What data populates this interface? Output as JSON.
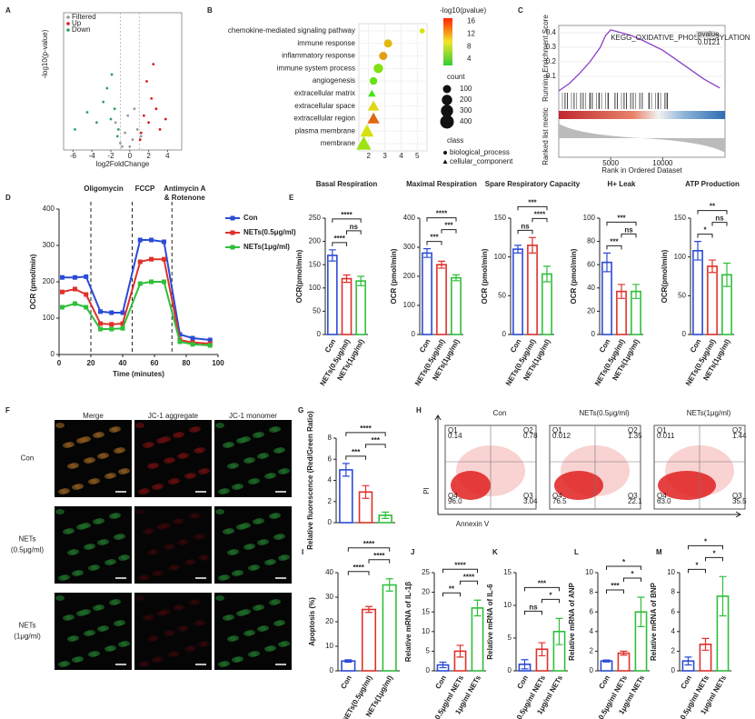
{
  "chart_data": [
    {
      "type": "volcano",
      "panel": "A",
      "xlabel": "log2FoldChange",
      "ylabel": "-log10(p-value)",
      "xlim": [
        -7,
        5.5
      ],
      "xticks": [
        -6,
        -4,
        -2,
        0,
        2,
        4
      ],
      "ylim": [
        0,
        40
      ],
      "series": [
        {
          "name": "Filtered",
          "color": "#999999",
          "x": [
            -1,
            -0.5,
            0.3,
            0.8,
            -1.5,
            1.2,
            0,
            -0.2,
            0.5,
            -0.8
          ],
          "values": [
            2,
            5,
            3,
            6,
            8,
            4,
            1,
            10,
            12,
            1
          ]
        },
        {
          "name": "Up",
          "color": "#d7191c",
          "x": [
            1.2,
            1.5,
            2,
            2.3,
            1.8,
            2.8,
            3.2,
            1.1,
            2.5,
            3.8
          ],
          "values": [
            5,
            10,
            8,
            15,
            20,
            12,
            6,
            3,
            25,
            9
          ]
        },
        {
          "name": "Down",
          "color": "#2ca25f",
          "x": [
            -1.2,
            -1.6,
            -2,
            -2.4,
            -1.9,
            -2.8,
            -3.5,
            -1.3,
            -4.5,
            -5.8
          ],
          "values": [
            6,
            12,
            9,
            18,
            22,
            14,
            8,
            4,
            11,
            6
          ]
        }
      ]
    },
    {
      "type": "dot",
      "panel": "B",
      "categories": [
        "chemokine-mediated signaling pathway",
        "immune response",
        "inflammatory response",
        "immune system process",
        "angiogenesis",
        "extracellular matrix",
        "extracellular space",
        "extracellular region",
        "plasma membrane",
        "membrane"
      ],
      "values": [
        5.3,
        3.2,
        2.9,
        2.6,
        2.3,
        2.2,
        2.3,
        2.3,
        1.9,
        1.7
      ],
      "counts": [
        20,
        100,
        100,
        150,
        80,
        80,
        250,
        300,
        400,
        500
      ],
      "pvalue": [
        9,
        11,
        12,
        6,
        5,
        4,
        10,
        14,
        9,
        7
      ],
      "classes": [
        "biological_process",
        "biological_process",
        "biological_process",
        "biological_process",
        "biological_process",
        "cellular_component",
        "cellular_component",
        "cellular_component",
        "cellular_component",
        "cellular_component"
      ],
      "xlim": [
        1.4,
        5.6
      ],
      "xticks": [
        2,
        3,
        4,
        5
      ],
      "color_title": "-log10(pvalue)",
      "clim": [
        2,
        17
      ],
      "cticks": [
        4,
        8,
        12,
        16
      ],
      "size_title": "count",
      "size_ticks": [
        100,
        200,
        300,
        400
      ],
      "class_title": "class",
      "class_names": [
        "biological_process",
        "cellular_component"
      ]
    },
    {
      "type": "gsea",
      "panel": "C",
      "ylabel": "Running Enrichment Score",
      "xlabel": "Rank in Ordered Dataset",
      "y2label": "Ranked list metric",
      "annotation": "KEGG_OXIDATIVE_PHOSPHORYLATION",
      "pvalue_label": "pvalue",
      "pvalue": "0.0121",
      "xlim": [
        0,
        16000
      ],
      "xticks": [
        5000,
        10000
      ],
      "ylim": [
        0,
        0.45
      ],
      "yticks": [
        0.1,
        0.2,
        0.3,
        0.4
      ],
      "x": [
        0,
        1000,
        2000,
        3000,
        4000,
        4500,
        5000,
        6000,
        7000,
        8000,
        10000,
        12000,
        14000,
        15500
      ],
      "values": [
        0,
        0.05,
        0.12,
        0.2,
        0.3,
        0.38,
        0.42,
        0.4,
        0.38,
        0.35,
        0.28,
        0.18,
        0.08,
        0.02
      ],
      "color": "#8a3fc7"
    },
    {
      "type": "line",
      "panel": "D",
      "xlabel": "Time (minutes)",
      "ylabel": "OCR (pmol/min)",
      "xlim": [
        0,
        100
      ],
      "xticks": [
        0,
        20,
        40,
        60,
        80,
        100
      ],
      "ylim": [
        0,
        400
      ],
      "yticks": [
        0,
        100,
        200,
        300,
        400
      ],
      "injections": [
        {
          "x": 20,
          "label": [
            "Oligomycin"
          ]
        },
        {
          "x": 46,
          "label": [
            "FCCP"
          ]
        },
        {
          "x": 71,
          "label": [
            "Antimycin A",
            "& Rotenone"
          ]
        }
      ],
      "x": [
        2,
        10,
        17,
        26,
        33,
        40,
        51,
        58,
        66,
        76,
        84,
        95
      ],
      "series": [
        {
          "name": "Con",
          "color": "#2b4bd6",
          "values": [
            212,
            212,
            214,
            118,
            115,
            115,
            315,
            315,
            310,
            55,
            45,
            40
          ]
        },
        {
          "name": "NETs(0.5μg/ml)",
          "color": "#e0302a",
          "values": [
            172,
            180,
            165,
            85,
            83,
            85,
            255,
            262,
            262,
            40,
            33,
            30
          ]
        },
        {
          "name": "NETs(1μg/ml)",
          "color": "#2fbf3a",
          "values": [
            130,
            140,
            130,
            70,
            70,
            72,
            195,
            200,
            200,
            35,
            28,
            25
          ]
        }
      ]
    },
    {
      "type": "bar",
      "panel": "E",
      "title": "Basal Respiration",
      "ylabel": "OCR(pmol/min)",
      "categories": [
        "Con",
        "NETs(0.5μg/ml)",
        "NETs(1μg/ml)"
      ],
      "values": [
        170,
        120,
        115
      ],
      "errors": [
        12,
        8,
        10
      ],
      "colors": [
        "#2b4bd6",
        "#e0302a",
        "#2fbf3a"
      ],
      "ylim": [
        0,
        250
      ],
      "yticks": [
        0,
        50,
        100,
        150,
        200,
        250
      ],
      "comparisons": [
        {
          "pair": [
            0,
            1
          ],
          "label": "****"
        },
        {
          "pair": [
            1,
            2
          ],
          "label": "ns"
        },
        {
          "pair": [
            0,
            2
          ],
          "label": "****"
        }
      ]
    },
    {
      "type": "bar",
      "title": "Maximal Respiration",
      "ylabel": "OCR (pmol/min)",
      "categories": [
        "Con",
        "NETs(0.5μg/ml)",
        "NETs(1μg/ml)"
      ],
      "values": [
        280,
        240,
        195
      ],
      "errors": [
        15,
        12,
        10
      ],
      "colors": [
        "#2b4bd6",
        "#e0302a",
        "#2fbf3a"
      ],
      "ylim": [
        0,
        400
      ],
      "yticks": [
        0,
        100,
        200,
        300,
        400
      ],
      "comparisons": [
        {
          "pair": [
            0,
            1
          ],
          "label": "***"
        },
        {
          "pair": [
            1,
            2
          ],
          "label": "***"
        },
        {
          "pair": [
            0,
            2
          ],
          "label": "****"
        }
      ]
    },
    {
      "type": "bar",
      "title": "Spare Respiratory Capacity",
      "ylabel": "OCR (pmol/min)",
      "categories": [
        "Con",
        "NETs(0.5μg/ml)",
        "NETs(1μg/ml)"
      ],
      "values": [
        110,
        115,
        78
      ],
      "errors": [
        5,
        10,
        10
      ],
      "colors": [
        "#2b4bd6",
        "#e0302a",
        "#2fbf3a"
      ],
      "ylim": [
        0,
        150
      ],
      "yticks": [
        0,
        50,
        100,
        150
      ],
      "comparisons": [
        {
          "pair": [
            0,
            1
          ],
          "label": "ns"
        },
        {
          "pair": [
            1,
            2
          ],
          "label": "****"
        },
        {
          "pair": [
            0,
            2
          ],
          "label": "***"
        }
      ]
    },
    {
      "type": "bar",
      "title": "H+ Leak",
      "ylabel": "OCR (pmol/min)",
      "categories": [
        "Con",
        "NETs(0.5μg/ml)",
        "NETs(1μg/ml)"
      ],
      "values": [
        62,
        37,
        37
      ],
      "errors": [
        8,
        6,
        6
      ],
      "colors": [
        "#2b4bd6",
        "#e0302a",
        "#2fbf3a"
      ],
      "ylim": [
        0,
        100
      ],
      "yticks": [
        0,
        20,
        40,
        60,
        80,
        100
      ],
      "comparisons": [
        {
          "pair": [
            0,
            1
          ],
          "label": "***"
        },
        {
          "pair": [
            1,
            2
          ],
          "label": "ns"
        },
        {
          "pair": [
            0,
            2
          ],
          "label": "***"
        }
      ]
    },
    {
      "type": "bar",
      "title": "ATP Production",
      "ylabel": "OCR(pmol/min)",
      "categories": [
        "Con",
        "NETs(0.5μg/ml)",
        "NETs(1μg/ml)"
      ],
      "values": [
        108,
        88,
        77
      ],
      "errors": [
        12,
        8,
        15
      ],
      "colors": [
        "#2b4bd6",
        "#e0302a",
        "#2fbf3a"
      ],
      "ylim": [
        0,
        150
      ],
      "yticks": [
        0,
        50,
        100,
        150
      ],
      "comparisons": [
        {
          "pair": [
            0,
            1
          ],
          "label": "*"
        },
        {
          "pair": [
            1,
            2
          ],
          "label": "ns"
        },
        {
          "pair": [
            0,
            2
          ],
          "label": "**"
        }
      ]
    },
    {
      "type": "bar",
      "panel": "G",
      "ylabel": "Relative fluorescence (Red/Green Ratio)",
      "values": [
        5.0,
        2.9,
        0.7
      ],
      "errors": [
        0.6,
        0.6,
        0.3
      ],
      "colors": [
        "#2b4bd6",
        "#e0302a",
        "#2fbf3a"
      ],
      "ylim": [
        0,
        8
      ],
      "yticks": [
        0,
        2,
        4,
        6,
        8
      ],
      "comparisons": [
        {
          "pair": [
            0,
            1
          ],
          "label": "***"
        },
        {
          "pair": [
            1,
            2
          ],
          "label": "***"
        },
        {
          "pair": [
            0,
            2
          ],
          "label": "****"
        }
      ]
    },
    {
      "type": "bar",
      "panel": "I",
      "ylabel": "Apoptosis (%)",
      "categories": [
        "Con",
        "NETs(0.5μg/ml)",
        "NETs(1μg/ml)"
      ],
      "values": [
        4,
        25,
        35
      ],
      "errors": [
        0.5,
        1.2,
        2.5
      ],
      "colors": [
        "#2b4bd6",
        "#e0302a",
        "#2fbf3a"
      ],
      "ylim": [
        0,
        40
      ],
      "yticks": [
        0,
        10,
        20,
        30,
        40
      ],
      "comparisons": [
        {
          "pair": [
            0,
            1
          ],
          "label": "****"
        },
        {
          "pair": [
            1,
            2
          ],
          "label": "****"
        },
        {
          "pair": [
            0,
            2
          ],
          "label": "****"
        }
      ]
    },
    {
      "type": "bar",
      "panel": "J",
      "ylabel": "Relative mRNA of IL-1β",
      "categories": [
        "Con",
        "0.5μg/ml NETs",
        "1μg/ml NETs"
      ],
      "values": [
        1.5,
        5,
        16
      ],
      "errors": [
        0.7,
        1.5,
        2
      ],
      "colors": [
        "#2b4bd6",
        "#e0302a",
        "#2fbf3a"
      ],
      "ylim": [
        0,
        25
      ],
      "yticks": [
        0,
        5,
        10,
        15,
        20,
        25
      ],
      "comparisons": [
        {
          "pair": [
            0,
            1
          ],
          "label": "**"
        },
        {
          "pair": [
            1,
            2
          ],
          "label": "****"
        },
        {
          "pair": [
            0,
            2
          ],
          "label": "****"
        }
      ]
    },
    {
      "type": "bar",
      "panel": "K",
      "ylabel": "Relative mRNA of IL-6",
      "categories": [
        "Con",
        "0.5μg/ml NETs",
        "1μg/ml NETs"
      ],
      "values": [
        1,
        3.3,
        6
      ],
      "errors": [
        0.7,
        1,
        2
      ],
      "colors": [
        "#2b4bd6",
        "#e0302a",
        "#2fbf3a"
      ],
      "ylim": [
        0,
        15
      ],
      "yticks": [
        0,
        5,
        10,
        15
      ],
      "comparisons": [
        {
          "pair": [
            0,
            1
          ],
          "label": "ns"
        },
        {
          "pair": [
            1,
            2
          ],
          "label": "*"
        },
        {
          "pair": [
            0,
            2
          ],
          "label": "***"
        }
      ]
    },
    {
      "type": "bar",
      "panel": "L",
      "ylabel": "Relative mRNA of ANP",
      "categories": [
        "Con",
        "0.5μg/ml NETs",
        "1μg/ml NETs"
      ],
      "values": [
        1,
        1.8,
        6
      ],
      "errors": [
        0.1,
        0.2,
        1.5
      ],
      "colors": [
        "#2b4bd6",
        "#e0302a",
        "#2fbf3a"
      ],
      "ylim": [
        0,
        10
      ],
      "yticks": [
        0,
        2,
        4,
        6,
        8,
        10
      ],
      "comparisons": [
        {
          "pair": [
            0,
            1
          ],
          "label": "***"
        },
        {
          "pair": [
            1,
            2
          ],
          "label": "*"
        },
        {
          "pair": [
            0,
            2
          ],
          "label": "*"
        }
      ]
    },
    {
      "type": "bar",
      "panel": "M",
      "ylabel": "Relative mRNA of BNP",
      "categories": [
        "Con",
        "0.5μg/ml NETs",
        "1μg/ml NETs"
      ],
      "values": [
        1,
        2.7,
        7.6
      ],
      "errors": [
        0.4,
        0.6,
        2
      ],
      "colors": [
        "#2b4bd6",
        "#e0302a",
        "#2fbf3a"
      ],
      "ylim": [
        0,
        10
      ],
      "yticks": [
        0,
        2,
        4,
        6,
        8,
        10
      ],
      "comparisons": [
        {
          "pair": [
            0,
            1
          ],
          "label": "*"
        },
        {
          "pair": [
            1,
            2
          ],
          "label": "*"
        },
        {
          "pair": [
            0,
            2
          ],
          "label": "*"
        }
      ]
    }
  ],
  "image_panel": {
    "panel": "F",
    "columns": [
      "Merge",
      "JC-1 aggregate",
      "JC-1 monomer"
    ],
    "rows": [
      [
        "Con"
      ],
      [
        "NETs",
        "(0.5μg/ml)"
      ],
      [
        "NETs",
        "(1μg/ml)"
      ]
    ]
  },
  "flow_panel": {
    "panel": "H",
    "x_label": "Annexin V",
    "y_label": "PI",
    "plots": [
      {
        "title": "Con",
        "quadrants": [
          {
            "name": "Q1",
            "value": "0.14"
          },
          {
            "name": "Q2",
            "value": "0.78"
          },
          {
            "name": "Q3",
            "value": "3.04"
          },
          {
            "name": "Q4",
            "value": "96.0"
          }
        ]
      },
      {
        "title": "NETs(0.5μg/ml)",
        "quadrants": [
          {
            "name": "Q1",
            "value": "0.012"
          },
          {
            "name": "Q2",
            "value": "1.35"
          },
          {
            "name": "Q3",
            "value": "22.1"
          },
          {
            "name": "Q4",
            "value": "76.5"
          }
        ]
      },
      {
        "title": "NETs(1μg/ml)",
        "quadrants": [
          {
            "name": "Q1",
            "value": "0.011"
          },
          {
            "name": "Q2",
            "value": "1.44"
          },
          {
            "name": "Q3",
            "value": "35.5"
          },
          {
            "name": "Q4",
            "value": "63.0"
          }
        ]
      }
    ]
  }
}
